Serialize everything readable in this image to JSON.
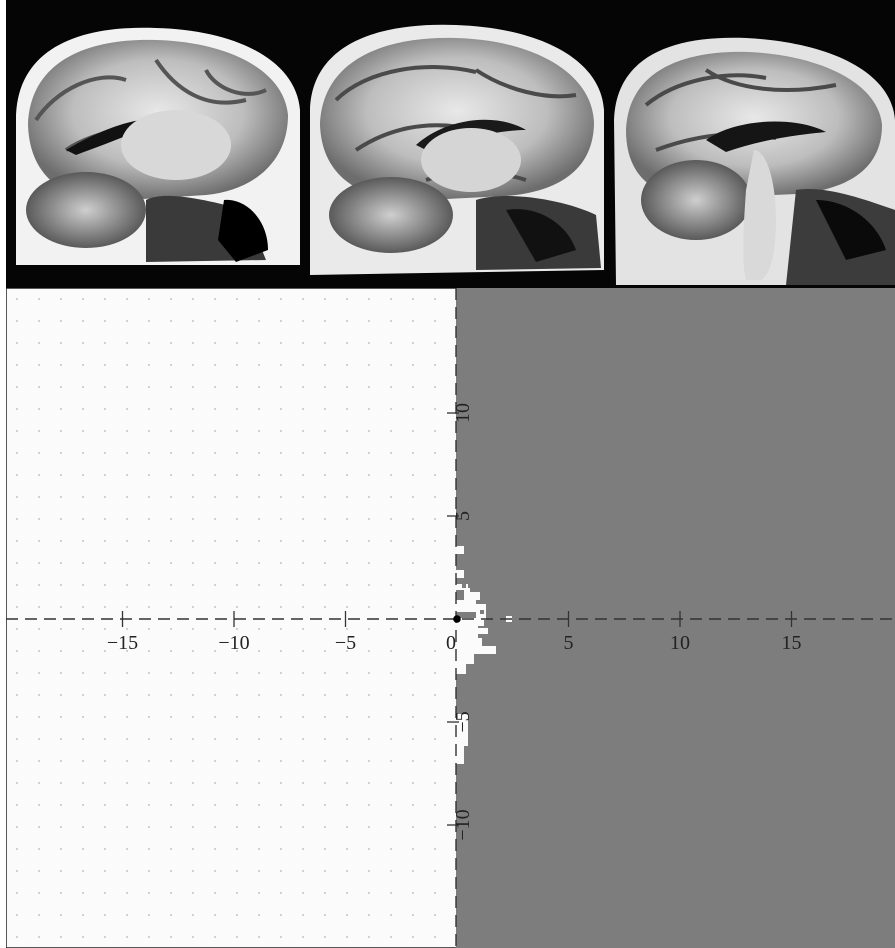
{
  "figure": {
    "mri_slices": [
      {
        "name": "slice-left"
      },
      {
        "name": "slice-middle"
      },
      {
        "name": "slice-right"
      }
    ]
  },
  "chart_data": {
    "type": "region-plot",
    "xlim": [
      -20,
      20
    ],
    "ylim": [
      -15,
      15
    ],
    "x_ticks": [
      -15,
      -10,
      -5,
      0,
      5,
      10,
      15
    ],
    "x_tick_labels": [
      "−15",
      "−10",
      "−5",
      "0",
      "5",
      "10",
      "15"
    ],
    "y_ticks": [
      10,
      5,
      -5,
      -10
    ],
    "y_tick_labels": [
      "10",
      "5",
      "−5",
      "−10"
    ],
    "axes_style": "dashed",
    "origin_point": [
      0,
      0
    ],
    "regions": {
      "left_color": "#fbfbfb",
      "right_color": "#7d7d7d",
      "boundary_x": 0
    },
    "grid": "dotted"
  }
}
